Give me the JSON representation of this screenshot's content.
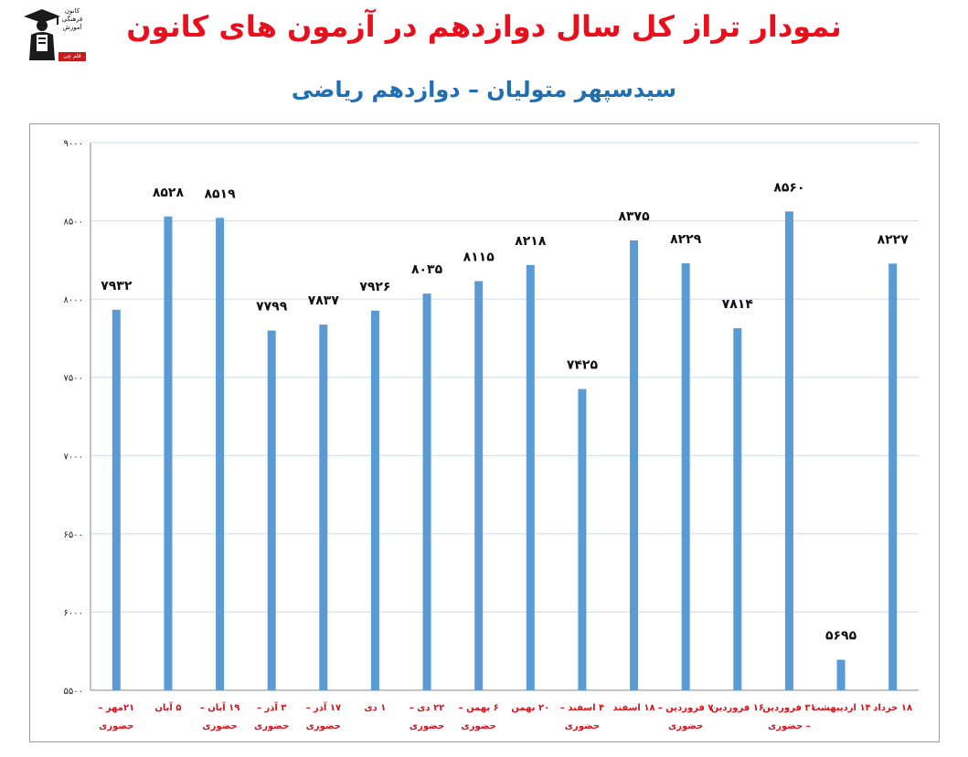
{
  "title": "نمودار تراز کل سال دوازدهم در آزمون های کانون",
  "subtitle": "سیدسپهر متولیان – دوازدهم ریاضی",
  "logo": {
    "text": "کانون فرهنگی آموزش",
    "tag": "قلم چی"
  },
  "colors": {
    "title": "#e8101c",
    "subtitle": "#1f6fb5",
    "bar": "#5b9bd5",
    "category": "#d4141d",
    "grid": "#c9daea"
  },
  "chart_data": {
    "type": "bar",
    "title": "نمودار تراز کل سال دوازدهم در آزمون های کانون",
    "subtitle": "سیدسپهر متولیان – دوازدهم ریاضی",
    "categories": [
      [
        "۲۱مهر –",
        "حضوری"
      ],
      [
        "۵ آبان"
      ],
      [
        "۱۹ آبان –",
        "حضوری"
      ],
      [
        "۳ آذر –",
        "حضوری"
      ],
      [
        "۱۷ آذر –",
        "حضوری"
      ],
      [
        "۱ دی"
      ],
      [
        "۲۲ دی –",
        "حضوری"
      ],
      [
        "۶ بهمن –",
        "حضوری"
      ],
      [
        "۲۰ بهمن"
      ],
      [
        "۴ اسفند –",
        "حضوری"
      ],
      [
        "۱۸ اسفند"
      ],
      [
        "۷ فروردین –",
        "حضوری"
      ],
      [
        "۱۶ فروردین"
      ],
      [
        "۳۱ فروردین",
        "– حضوری"
      ],
      [
        "۱۴ اردیبهشت"
      ],
      [
        "۱۸ خرداد"
      ]
    ],
    "values": [
      7932,
      8528,
      8519,
      7799,
      7837,
      7926,
      8035,
      8115,
      8218,
      7425,
      8375,
      8229,
      7814,
      8560,
      5695,
      8227
    ],
    "value_labels": [
      "۷۹۳۲",
      "۸۵۲۸",
      "۸۵۱۹",
      "۷۷۹۹",
      "۷۸۳۷",
      "۷۹۲۶",
      "۸۰۳۵",
      "۸۱۱۵",
      "۸۲۱۸",
      "۷۴۲۵",
      "۸۳۷۵",
      "۸۲۲۹",
      "۷۸۱۴",
      "۸۵۶۰",
      "۵۶۹۵",
      "۸۲۲۷"
    ],
    "yticks": [
      5500,
      6000,
      6500,
      7000,
      7500,
      8000,
      8500,
      9000
    ],
    "ytick_labels": [
      "۵۵۰۰",
      "۶۰۰۰",
      "۶۵۰۰",
      "۷۰۰۰",
      "۷۵۰۰",
      "۸۰۰۰",
      "۸۵۰۰",
      "۹۰۰۰"
    ],
    "ylim": [
      5500,
      9000
    ],
    "grid": true,
    "legend": "none"
  }
}
